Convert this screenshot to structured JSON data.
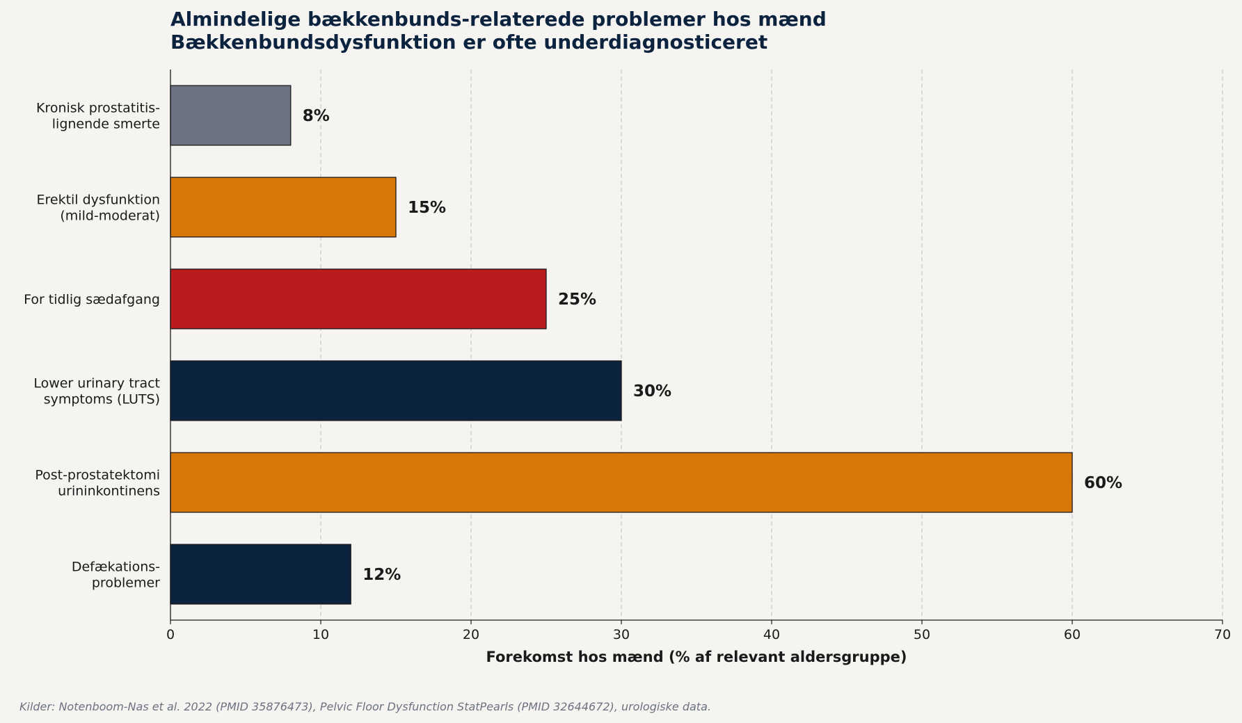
{
  "chart_data": {
    "type": "bar",
    "orientation": "horizontal",
    "title": [
      "Almindelige bækkenbunds-relaterede problemer hos mænd",
      "Bækkenbundsdysfunktion er ofte underdiagnosticeret"
    ],
    "categories": [
      [
        "Kronisk prostatitis-",
        "lignende smerte"
      ],
      [
        "Erektil dysfunktion",
        "(mild-moderat)"
      ],
      [
        "For tidlig sædafgang"
      ],
      [
        "Lower urinary tract",
        "symptoms (LUTS)"
      ],
      [
        "Post-prostatektomi",
        "urininkontinens"
      ],
      [
        "Defækations-",
        "problemer"
      ]
    ],
    "values": [
      8,
      15,
      25,
      30,
      60,
      12
    ],
    "value_labels": [
      "8%",
      "15%",
      "25%",
      "30%",
      "60%",
      "12%"
    ],
    "bar_colors": [
      "#6b7280",
      "#d97706",
      "#b91c1c",
      "#0c2340",
      "#d97706",
      "#0c2340"
    ],
    "xlabel": "Forekomst hos mænd (% af relevant aldersgruppe)",
    "xlim": [
      0,
      70
    ],
    "xticks": [
      0,
      10,
      20,
      30,
      40,
      50,
      60,
      70
    ],
    "grid": "x-dashed",
    "source": "Kilder: Notenboom-Nas et al. 2022 (PMID 35876473), Pelvic Floor Dysfunction StatPearls (PMID 32644672), urologiske data."
  }
}
